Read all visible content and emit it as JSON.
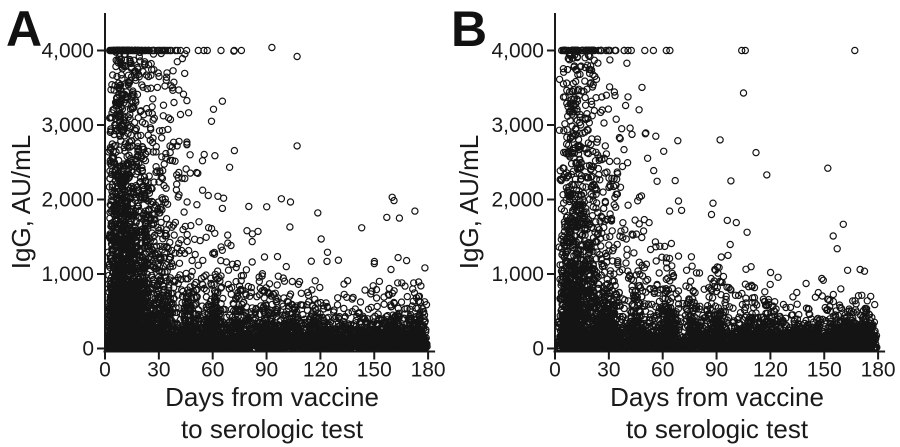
{
  "figure": {
    "y_axis_title": "IgG, AU/mL",
    "x_axis_title_line1": "Days from vaccine",
    "x_axis_title_line2": "to serologic test",
    "ink_color": "#1a1a1a",
    "background_color": "#ffffff"
  },
  "chart_data": {
    "type": "scatter",
    "title": "",
    "xlabel": "Days from vaccine to serologic test",
    "ylabel": "IgG, AU/mL",
    "xlim": [
      0,
      180
    ],
    "ylim": [
      0,
      4000
    ],
    "grid": false,
    "legend": "none",
    "x_ticks": [
      0,
      30,
      60,
      90,
      120,
      150,
      180
    ],
    "x_tick_labels": [
      "0",
      "30",
      "60",
      "90",
      "120",
      "150",
      "180"
    ],
    "y_ticks": [
      0,
      1000,
      2000,
      3000,
      4000
    ],
    "y_tick_labels": [
      "0",
      "1,000",
      "2,000",
      "3,000",
      "4,000"
    ],
    "marker": {
      "shape": "open-circle",
      "radius_px": 3.1,
      "color": "#141414"
    },
    "assay_upper_limit": 4000,
    "seed": 20240612,
    "panels": [
      {
        "label": "A",
        "description": "Thousands of open-circle points; very dense vertical cloud days 2-40 spanning 0-4,000 with many values capped at 4,000; density decays with days; near-solid carpet below ~400 AU/mL across 0-180 days with periodic bumps; sparse high values after day 90.",
        "point_cloud": {
          "components": [
            {
              "name": "cap-row-4000",
              "n": 120,
              "x": {
                "dist": "gamma2",
                "offset": 4,
                "scale": 6
              },
              "y": {
                "dist": "const",
                "value": 4000
              }
            },
            {
              "name": "early-dense-band",
              "n": 1700,
              "x": {
                "dist": "gamma2",
                "offset": 1.5,
                "scale": 6.5
              },
              "y": {
                "dist": "exp",
                "scale": 1150
              }
            },
            {
              "name": "early-upper-fill",
              "n": 480,
              "x": {
                "dist": "gamma2",
                "offset": 2,
                "scale": 7.5
              },
              "y": {
                "dist": "uniform",
                "min": 150,
                "max": 4000
              }
            },
            {
              "name": "mid-decay",
              "n": 750,
              "x": {
                "dist": "uniform",
                "min": 28,
                "max": 178
              },
              "ydecay": {
                "amp": 2600,
                "tau": 40,
                "base": 130
              }
            },
            {
              "name": "bottom-carpet",
              "n": 2000,
              "x": {
                "dist": "uniform",
                "min": 1.5,
                "max": 178.5
              },
              "y": {
                "dist": "exp",
                "scale": 135
              }
            },
            {
              "name": "bump-d33",
              "n": 150,
              "x": {
                "dist": "normal",
                "mean": 33,
                "sd": 2.5
              },
              "y": {
                "dist": "exp",
                "scale": 300
              }
            },
            {
              "name": "bump-d47",
              "n": 120,
              "x": {
                "dist": "normal",
                "mean": 47,
                "sd": 2.5
              },
              "y": {
                "dist": "exp",
                "scale": 280
              }
            },
            {
              "name": "bump-d62",
              "n": 140,
              "x": {
                "dist": "normal",
                "mean": 62,
                "sd": 2.5
              },
              "y": {
                "dist": "exp",
                "scale": 330
              }
            },
            {
              "name": "bump-d75",
              "n": 100,
              "x": {
                "dist": "normal",
                "mean": 75,
                "sd": 2.5
              },
              "y": {
                "dist": "exp",
                "scale": 280
              }
            },
            {
              "name": "bump-d90",
              "n": 110,
              "x": {
                "dist": "normal",
                "mean": 90,
                "sd": 2.5
              },
              "y": {
                "dist": "exp",
                "scale": 300
              }
            },
            {
              "name": "bump-d104",
              "n": 90,
              "x": {
                "dist": "normal",
                "mean": 104,
                "sd": 3
              },
              "y": {
                "dist": "exp",
                "scale": 260
              }
            },
            {
              "name": "bump-d117",
              "n": 80,
              "x": {
                "dist": "normal",
                "mean": 117,
                "sd": 3
              },
              "y": {
                "dist": "exp",
                "scale": 240
              }
            },
            {
              "name": "bump-d160",
              "n": 240,
              "x": {
                "dist": "normal",
                "mean": 160,
                "sd": 8
              },
              "y": {
                "dist": "exp",
                "scale": 230
              }
            },
            {
              "name": "bump-d175",
              "n": 150,
              "x": {
                "dist": "normal",
                "mean": 175,
                "sd": 2.5
              },
              "y": {
                "dist": "exp",
                "scale": 180
              }
            }
          ],
          "outlier_points": [
            [
              52,
              4000
            ],
            [
              57,
              4000
            ],
            [
              72,
              4000
            ],
            [
              76,
              4000
            ],
            [
              93,
              4040
            ],
            [
              107,
              3920
            ],
            [
              107,
              2720
            ],
            [
              160,
              2030
            ],
            [
              161,
              1985
            ],
            [
              157,
              1760
            ],
            [
              164,
              1750
            ],
            [
              143,
              1620
            ],
            [
              150,
              1140
            ],
            [
              130,
              1185
            ],
            [
              168,
              1180
            ],
            [
              172,
              880
            ],
            [
              176,
              840
            ]
          ]
        }
      },
      {
        "label": "B",
        "description": "Same layout as panel A but fewer points overall, sparser above 1,500 AU/mL; capped 4,000 row mostly days 3-45 with isolated caps near days 50, 63, 105, 167; bottom carpet with bumps and scattered high outliers at later days.",
        "point_cloud": {
          "components": [
            {
              "name": "cap-row-4000",
              "n": 55,
              "x": {
                "dist": "gamma2",
                "offset": 3.5,
                "scale": 8
              },
              "y": {
                "dist": "const",
                "value": 4000
              }
            },
            {
              "name": "early-dense-band",
              "n": 1250,
              "x": {
                "dist": "gamma2",
                "offset": 2,
                "scale": 6.5
              },
              "y": {
                "dist": "exp",
                "scale": 820
              }
            },
            {
              "name": "early-upper-fill",
              "n": 250,
              "x": {
                "dist": "gamma2",
                "offset": 3,
                "scale": 7.5
              },
              "y": {
                "dist": "uniform",
                "min": 1400,
                "max": 3950
              }
            },
            {
              "name": "mid-decay",
              "n": 620,
              "x": {
                "dist": "uniform",
                "min": 28,
                "max": 178
              },
              "ydecay": {
                "amp": 2200,
                "tau": 38,
                "base": 115
              }
            },
            {
              "name": "bottom-carpet",
              "n": 1900,
              "x": {
                "dist": "uniform",
                "min": 1.5,
                "max": 178.5
              },
              "y": {
                "dist": "exp",
                "scale": 125
              }
            },
            {
              "name": "bump-d30",
              "n": 150,
              "x": {
                "dist": "normal",
                "mean": 30,
                "sd": 2.5
              },
              "y": {
                "dist": "exp",
                "scale": 320
              }
            },
            {
              "name": "bump-d45",
              "n": 130,
              "x": {
                "dist": "normal",
                "mean": 45,
                "sd": 2.5
              },
              "y": {
                "dist": "exp",
                "scale": 300
              }
            },
            {
              "name": "bump-d63",
              "n": 150,
              "x": {
                "dist": "normal",
                "mean": 63,
                "sd": 2.5
              },
              "y": {
                "dist": "exp",
                "scale": 330
              }
            },
            {
              "name": "bump-d77",
              "n": 100,
              "x": {
                "dist": "normal",
                "mean": 77,
                "sd": 2.5
              },
              "y": {
                "dist": "exp",
                "scale": 260
              }
            },
            {
              "name": "bump-d91",
              "n": 110,
              "x": {
                "dist": "normal",
                "mean": 91,
                "sd": 2.5
              },
              "y": {
                "dist": "exp",
                "scale": 300
              }
            },
            {
              "name": "bump-d108",
              "n": 100,
              "x": {
                "dist": "normal",
                "mean": 108,
                "sd": 3.5
              },
              "y": {
                "dist": "exp",
                "scale": 280
              }
            },
            {
              "name": "bump-d120",
              "n": 90,
              "x": {
                "dist": "normal",
                "mean": 120,
                "sd": 3.5
              },
              "y": {
                "dist": "exp",
                "scale": 240
              }
            },
            {
              "name": "bump-d160",
              "n": 230,
              "x": {
                "dist": "normal",
                "mean": 160,
                "sd": 8
              },
              "y": {
                "dist": "exp",
                "scale": 220
              }
            },
            {
              "name": "bump-d175",
              "n": 140,
              "x": {
                "dist": "normal",
                "mean": 175,
                "sd": 2.5
              },
              "y": {
                "dist": "exp",
                "scale": 170
              }
            }
          ],
          "outlier_points": [
            [
              50,
              4000
            ],
            [
              62,
              4000
            ],
            [
              64,
              4000
            ],
            [
              104,
              4000
            ],
            [
              106,
              4000
            ],
            [
              167,
              4000
            ],
            [
              105,
              3430
            ],
            [
              92,
              2800
            ],
            [
              112,
              2630
            ],
            [
              152,
              2420
            ],
            [
              98,
              2250
            ],
            [
              118,
              2330
            ],
            [
              88,
              1950
            ],
            [
              96,
              1720
            ],
            [
              101,
              1690
            ],
            [
              107,
              1560
            ],
            [
              155,
              1510
            ],
            [
              163,
              1050
            ],
            [
              170,
              1060
            ],
            [
              174,
              640
            ]
          ]
        }
      }
    ]
  }
}
